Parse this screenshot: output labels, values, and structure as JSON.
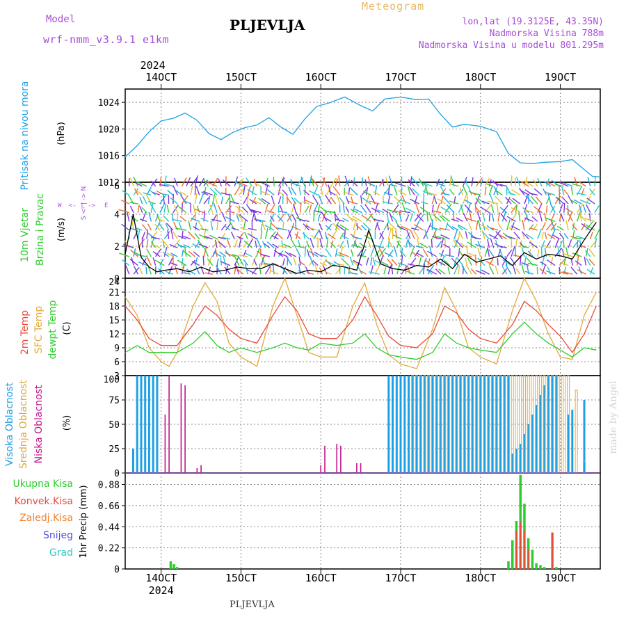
{
  "header": {
    "model_label": "Model",
    "model_name": "wrf-nmm_v3.9.1  e1km",
    "station": "PLJEVLJA",
    "title": "Meteogram",
    "coords": "lon,lat (19.3125E, 43.35N)",
    "elevation": "Nadmorska Visina 788m",
    "model_elevation": "Nadmorska Visina u modelu 801.295m",
    "footer_station": "PLJEVLJA",
    "credit": "made by Angel"
  },
  "time_axis": {
    "year": "2024",
    "ticks": [
      "14OCT",
      "15OCT",
      "16OCT",
      "17OCT",
      "18OCT",
      "19OCT"
    ],
    "start_day": 13.55,
    "end_day": 19.5
  },
  "colors": {
    "pressure": "#1ea0e6",
    "t2m": "#e84a3a",
    "sfc": "#e2a93a",
    "dewpt": "#2ecc2e",
    "high_cloud": "#1ea0e6",
    "mid_cloud": "#e2a93a",
    "low_cloud": "#c0168a",
    "precip_total": "#2ecc2e",
    "precip_conv": "#e84a3a",
    "precip_ls": "#f0822d",
    "snow": "#5050e0",
    "hail": "#2ec8c8"
  },
  "chart_data": [
    {
      "type": "line",
      "panel": "pressure",
      "ylabel_main": "Pritisak na nivou mora",
      "unit": "(hPa)",
      "ylim": [
        1012,
        1026
      ],
      "yticks": [
        "1012",
        "1016",
        "1020",
        "1024"
      ],
      "grid": true,
      "series": [
        {
          "name": "Pritisak na nivou mora",
          "x": [
            13.55,
            13.7,
            13.85,
            14.0,
            14.15,
            14.3,
            14.45,
            14.6,
            14.75,
            14.9,
            15.05,
            15.2,
            15.35,
            15.5,
            15.65,
            15.8,
            15.95,
            16.1,
            16.3,
            16.5,
            16.65,
            16.8,
            17.0,
            17.2,
            17.35,
            17.5,
            17.65,
            17.8,
            18.0,
            18.2,
            18.35,
            18.5,
            18.65,
            18.8,
            19.0,
            19.15,
            19.3,
            19.4,
            19.5
          ],
          "values": [
            1015.8,
            1017.5,
            1019.6,
            1021.2,
            1021.6,
            1022.4,
            1021.3,
            1019.3,
            1018.4,
            1019.5,
            1020.2,
            1020.6,
            1021.7,
            1020.3,
            1019.2,
            1021.5,
            1023.4,
            1023.9,
            1024.8,
            1023.5,
            1022.7,
            1024.5,
            1024.8,
            1024.4,
            1024.5,
            1022.2,
            1020.3,
            1020.7,
            1020.4,
            1019.6,
            1016.3,
            1014.9,
            1014.8,
            1015.0,
            1015.1,
            1015.4,
            1013.9,
            1012.9,
            1012.8
          ]
        }
      ]
    },
    {
      "type": "line",
      "panel": "wind",
      "ylabel_main": "10m Vjetar",
      "ylabel_sub": "Brzina i Pravac",
      "unit": "(m/s)",
      "compass": [
        "W",
        "E",
        "N",
        "S"
      ],
      "ylim": [
        0,
        6
      ],
      "yticks": [
        "0",
        "2",
        "4",
        "6"
      ],
      "grid": true,
      "series": [
        {
          "name": "10m Vjetar",
          "x": [
            13.55,
            13.65,
            13.75,
            13.85,
            13.95,
            14.05,
            14.2,
            14.35,
            14.5,
            14.65,
            14.8,
            14.95,
            15.1,
            15.25,
            15.4,
            15.55,
            15.7,
            15.85,
            16.0,
            16.15,
            16.3,
            16.45,
            16.6,
            16.75,
            16.9,
            17.05,
            17.2,
            17.35,
            17.5,
            17.65,
            17.8,
            17.95,
            18.1,
            18.25,
            18.4,
            18.55,
            18.7,
            18.85,
            19.0,
            19.15,
            19.3,
            19.45
          ],
          "values": [
            1.5,
            4.0,
            1.3,
            0.7,
            0.4,
            0.5,
            0.6,
            0.4,
            0.7,
            0.4,
            0.5,
            0.7,
            0.6,
            0.6,
            0.9,
            0.6,
            0.3,
            0.5,
            0.4,
            0.8,
            0.7,
            0.5,
            3.0,
            0.9,
            0.6,
            0.5,
            0.8,
            0.7,
            1.2,
            0.6,
            1.5,
            1.0,
            1.2,
            1.4,
            0.8,
            1.6,
            1.2,
            1.5,
            1.4,
            1.2,
            2.4,
            3.5
          ]
        }
      ]
    },
    {
      "type": "line",
      "panel": "temperature",
      "ylabel_main": "2m Temp",
      "ylabel_sub": "SFC Temp",
      "ylabel_sub2": "dewpt Temp",
      "unit": "(C)",
      "ylim": [
        3,
        24
      ],
      "yticks": [
        "3",
        "6",
        "9",
        "12",
        "15",
        "18",
        "21",
        "24"
      ],
      "grid": true,
      "series": [
        {
          "name": "2m Temp",
          "x": [
            13.55,
            13.7,
            13.85,
            14.0,
            14.2,
            14.4,
            14.55,
            14.7,
            14.85,
            15.0,
            15.2,
            15.4,
            15.55,
            15.7,
            15.85,
            16.0,
            16.2,
            16.4,
            16.55,
            16.7,
            16.85,
            17.0,
            17.2,
            17.4,
            17.55,
            17.7,
            17.85,
            18.0,
            18.2,
            18.4,
            18.55,
            18.7,
            18.85,
            19.0,
            19.15,
            19.3,
            19.45
          ],
          "values": [
            18.0,
            15.0,
            11.0,
            9.5,
            9.5,
            14.0,
            18.0,
            16.0,
            13.0,
            11.0,
            10.0,
            16.0,
            20.0,
            17.0,
            12.0,
            11.0,
            11.0,
            15.0,
            20.0,
            16.0,
            11.5,
            9.5,
            9.0,
            12.0,
            18.0,
            16.5,
            13.0,
            11.0,
            10.0,
            14.0,
            19.0,
            17.0,
            14.0,
            11.5,
            8.0,
            12.0,
            18.0
          ]
        },
        {
          "name": "SFC Temp",
          "x": [
            13.55,
            13.7,
            13.85,
            14.0,
            14.1,
            14.2,
            14.4,
            14.55,
            14.7,
            14.85,
            15.0,
            15.2,
            15.4,
            15.55,
            15.7,
            15.85,
            16.0,
            16.2,
            16.4,
            16.55,
            16.7,
            16.85,
            17.0,
            17.2,
            17.4,
            17.55,
            17.7,
            17.85,
            18.0,
            18.2,
            18.4,
            18.55,
            18.7,
            18.85,
            19.0,
            19.15,
            19.3,
            19.45
          ],
          "values": [
            20.0,
            16.0,
            9.0,
            6.0,
            5.0,
            8.0,
            18.0,
            23.0,
            19.0,
            10.0,
            7.0,
            5.0,
            18.0,
            24.0,
            16.0,
            8.0,
            7.0,
            7.0,
            18.0,
            23.0,
            14.0,
            7.5,
            5.5,
            4.5,
            13.0,
            22.0,
            17.0,
            9.0,
            7.0,
            5.5,
            17.0,
            24.0,
            19.0,
            12.0,
            7.0,
            6.5,
            16.0,
            21.0
          ]
        },
        {
          "name": "dewpt Temp",
          "x": [
            13.55,
            13.7,
            13.85,
            14.0,
            14.2,
            14.4,
            14.55,
            14.7,
            14.85,
            15.0,
            15.2,
            15.4,
            15.55,
            15.7,
            15.85,
            16.0,
            16.2,
            16.4,
            16.55,
            16.7,
            16.85,
            17.0,
            17.2,
            17.4,
            17.55,
            17.7,
            17.85,
            18.0,
            18.2,
            18.4,
            18.55,
            18.7,
            18.85,
            19.0,
            19.15,
            19.3,
            19.45
          ],
          "values": [
            8.0,
            9.5,
            8.0,
            8.0,
            8.0,
            10.0,
            12.5,
            9.5,
            8.0,
            9.0,
            8.0,
            9.0,
            10.0,
            9.0,
            8.5,
            10.0,
            9.5,
            10.0,
            12.0,
            9.0,
            7.5,
            7.0,
            6.5,
            8.0,
            12.0,
            10.0,
            9.0,
            8.5,
            8.0,
            12.0,
            14.5,
            12.0,
            10.0,
            8.5,
            7.0,
            9.0,
            8.5
          ]
        }
      ]
    },
    {
      "type": "bar",
      "panel": "clouds",
      "ylabel_main": "Visoka Oblacnost",
      "ylabel_sub": "Srednja Oblacnost",
      "ylabel_sub2": "Niska Oblacnost",
      "unit": "(%)",
      "ylim": [
        0,
        100
      ],
      "yticks": [
        "0",
        "25",
        "50",
        "75",
        "100"
      ],
      "grid": true,
      "series": [
        {
          "name": "Visoka Oblacnost",
          "x": [
            13.65,
            13.7,
            13.75,
            13.8,
            13.85,
            13.9,
            13.95,
            16.85,
            16.9,
            16.95,
            17.0,
            17.05,
            17.1,
            17.15,
            17.2,
            17.25,
            17.3,
            17.35,
            17.4,
            17.45,
            17.5,
            17.55,
            17.6,
            17.65,
            17.7,
            17.75,
            17.8,
            17.85,
            17.9,
            17.95,
            18.0,
            18.05,
            18.1,
            18.15,
            18.2,
            18.25,
            18.3,
            18.35,
            18.4,
            18.45,
            18.5,
            18.55,
            18.6,
            18.65,
            18.7,
            18.75,
            18.8,
            18.85,
            18.9,
            18.95,
            19.1,
            19.15,
            19.3
          ],
          "values": [
            25,
            100,
            100,
            100,
            100,
            100,
            100,
            100,
            100,
            100,
            100,
            100,
            100,
            100,
            100,
            100,
            100,
            100,
            100,
            100,
            100,
            100,
            100,
            100,
            100,
            100,
            100,
            100,
            100,
            100,
            100,
            100,
            100,
            100,
            100,
            100,
            100,
            100,
            20,
            25,
            30,
            40,
            50,
            60,
            70,
            80,
            90,
            100,
            100,
            100,
            60,
            65,
            75
          ]
        },
        {
          "name": "Srednja Oblacnost",
          "x": [
            17.15,
            17.2,
            17.25,
            17.3,
            17.35,
            17.4,
            17.45,
            17.5,
            17.55,
            17.6,
            17.65,
            17.7,
            17.75,
            17.8,
            17.85,
            17.9,
            17.95,
            18.0,
            18.05,
            18.1,
            18.15,
            18.2,
            18.25,
            18.3,
            18.35,
            18.4,
            18.45,
            18.5,
            18.55,
            18.6,
            18.65,
            18.7,
            18.75,
            18.8,
            18.85,
            18.9,
            18.95,
            19.0,
            19.05,
            19.1,
            19.2,
            19.3
          ],
          "values": [
            100,
            100,
            100,
            100,
            100,
            100,
            100,
            100,
            100,
            100,
            100,
            100,
            100,
            100,
            100,
            100,
            100,
            100,
            100,
            100,
            100,
            100,
            100,
            100,
            100,
            100,
            100,
            100,
            100,
            100,
            100,
            100,
            100,
            100,
            100,
            100,
            100,
            100,
            100,
            100,
            85,
            12
          ]
        },
        {
          "name": "Niska Oblacnost",
          "x": [
            14.05,
            14.1,
            14.25,
            14.3,
            14.45,
            14.5,
            16.0,
            16.05,
            16.2,
            16.25,
            16.45,
            16.5
          ],
          "values": [
            60,
            100,
            92,
            90,
            5,
            8,
            8,
            28,
            30,
            28,
            10,
            10
          ]
        }
      ]
    },
    {
      "type": "bar",
      "panel": "precip",
      "ylabel_main": "1hr Precip (mm)",
      "legend": [
        "Ukupna Kisa",
        "Konvek.Kisa",
        "Zaledj.Kisa",
        "Snijeg",
        "Grad"
      ],
      "ylim": [
        0,
        1.0
      ],
      "yticks": [
        "0",
        "0.22",
        "0.44",
        "0.66",
        "0.88"
      ],
      "grid": true,
      "series": [
        {
          "name": "Ukupna Kisa",
          "x": [
            14.12,
            14.16,
            14.2,
            18.35,
            18.4,
            18.45,
            18.5,
            18.55,
            18.6,
            18.65,
            18.7,
            18.75,
            18.8,
            18.9,
            18.95
          ],
          "values": [
            0.08,
            0.05,
            0.02,
            0.08,
            0.3,
            0.5,
            0.98,
            0.68,
            0.32,
            0.2,
            0.06,
            0.04,
            0.02,
            0.38,
            0.02
          ]
        },
        {
          "name": "Konvek.Kisa",
          "x": [
            18.45,
            18.5,
            18.55,
            18.6,
            18.9
          ],
          "values": [
            0.4,
            0.5,
            0.4,
            0.2,
            0.38
          ]
        }
      ]
    }
  ]
}
